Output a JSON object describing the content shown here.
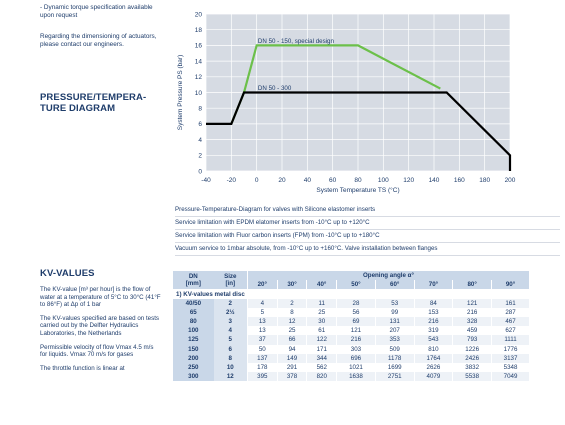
{
  "left": {
    "bullet": "- Dynamic torque specification available upon request",
    "dim_note": "Regarding the dimensioning of actuators, please contact our engineers.",
    "pt_title_1": "PRESSURE/TEMPERA-",
    "pt_title_2": "TURE DIAGRAM",
    "kv_title": "KV-VALUES",
    "kv_notes": [
      "The KV-value [m³ per hour] is the flow of water at a temperature of 5°C to 30°C (41°F to 86°F) at Δp of 1 bar",
      "The KV-values specified are based on tests carried out by the Delfter Hydraulics Laboratories, the Netherlands",
      "Permissible velocity of flow Vmax 4.5 m/s for liquids. Vmax 70 m/s for gases",
      "The throttle function is linear at"
    ]
  },
  "chart_data": {
    "type": "line",
    "xlabel": "System Temperature TS (°C)",
    "ylabel": "System Pressure PS (bar)",
    "xlim": [
      -40,
      200
    ],
    "ylim": [
      0,
      20
    ],
    "xticks": [
      -40,
      -20,
      0,
      20,
      40,
      60,
      80,
      100,
      120,
      140,
      160,
      180,
      200
    ],
    "yticks": [
      0,
      2,
      4,
      6,
      8,
      10,
      12,
      14,
      16,
      18,
      20
    ],
    "grid": true,
    "series": [
      {
        "name": "DN 50 - 300",
        "color": "#000000",
        "x": [
          -40,
          -20,
          -10,
          150,
          200,
          200
        ],
        "y": [
          6,
          6,
          10,
          10,
          2,
          0
        ]
      },
      {
        "name": "DN 50 - 150, special design",
        "color": "#6cc04a",
        "x": [
          -20,
          -10,
          0,
          80,
          145
        ],
        "y": [
          6,
          10,
          16,
          16,
          10.5
        ]
      }
    ],
    "annotations": [
      {
        "text": "DN 50 - 150, special design",
        "x": 1,
        "y": 16.6
      },
      {
        "text": "DN 50 - 300",
        "x": 1,
        "y": 10.6
      }
    ]
  },
  "chart_notes": [
    "Pressure-Temperature-Diagram for valves with Silicone elastomer inserts",
    "Service limitation with EPDM elatomer inserts from -10°C up to +120°C",
    "Service limitation with Fluor carbon inserts (FPM) from -10°C up to +180°C",
    "Vacuum service to 1mbar absolute, from -10°C up to +160°C. Valve installation between flanges"
  ],
  "table": {
    "col_dn": "DN",
    "col_dn_unit": "[mm]",
    "col_size": "Size",
    "col_size_unit": "[in]",
    "opening_header": "Opening angle α°",
    "angles": [
      "20°",
      "30°",
      "40°",
      "50°",
      "60°",
      "70°",
      "80°",
      "90°"
    ],
    "sub_header": "1) KV-values metal disc",
    "rows": [
      {
        "dn": "40/50",
        "size": "2",
        "values": [
          "4",
          "2",
          "11",
          "28",
          "53",
          "84",
          "121",
          "161"
        ]
      },
      {
        "dn": "65",
        "size": "2½",
        "values": [
          "5",
          "8",
          "25",
          "56",
          "99",
          "153",
          "216",
          "287"
        ]
      },
      {
        "dn": "80",
        "size": "3",
        "values": [
          "13",
          "12",
          "30",
          "69",
          "131",
          "216",
          "328",
          "467"
        ]
      },
      {
        "dn": "100",
        "size": "4",
        "values": [
          "13",
          "25",
          "61",
          "121",
          "207",
          "319",
          "459",
          "627"
        ]
      },
      {
        "dn": "125",
        "size": "5",
        "values": [
          "37",
          "66",
          "122",
          "216",
          "353",
          "543",
          "793",
          "1111"
        ]
      },
      {
        "dn": "150",
        "size": "6",
        "values": [
          "50",
          "94",
          "171",
          "303",
          "509",
          "810",
          "1226",
          "1776"
        ]
      },
      {
        "dn": "200",
        "size": "8",
        "values": [
          "137",
          "149",
          "344",
          "696",
          "1178",
          "1764",
          "2426",
          "3137"
        ]
      },
      {
        "dn": "250",
        "size": "10",
        "values": [
          "178",
          "291",
          "562",
          "1021",
          "1699",
          "2626",
          "3832",
          "5348"
        ]
      },
      {
        "dn": "300",
        "size": "12",
        "values": [
          "395",
          "378",
          "820",
          "1638",
          "2751",
          "4079",
          "5538",
          "7049"
        ]
      }
    ]
  }
}
